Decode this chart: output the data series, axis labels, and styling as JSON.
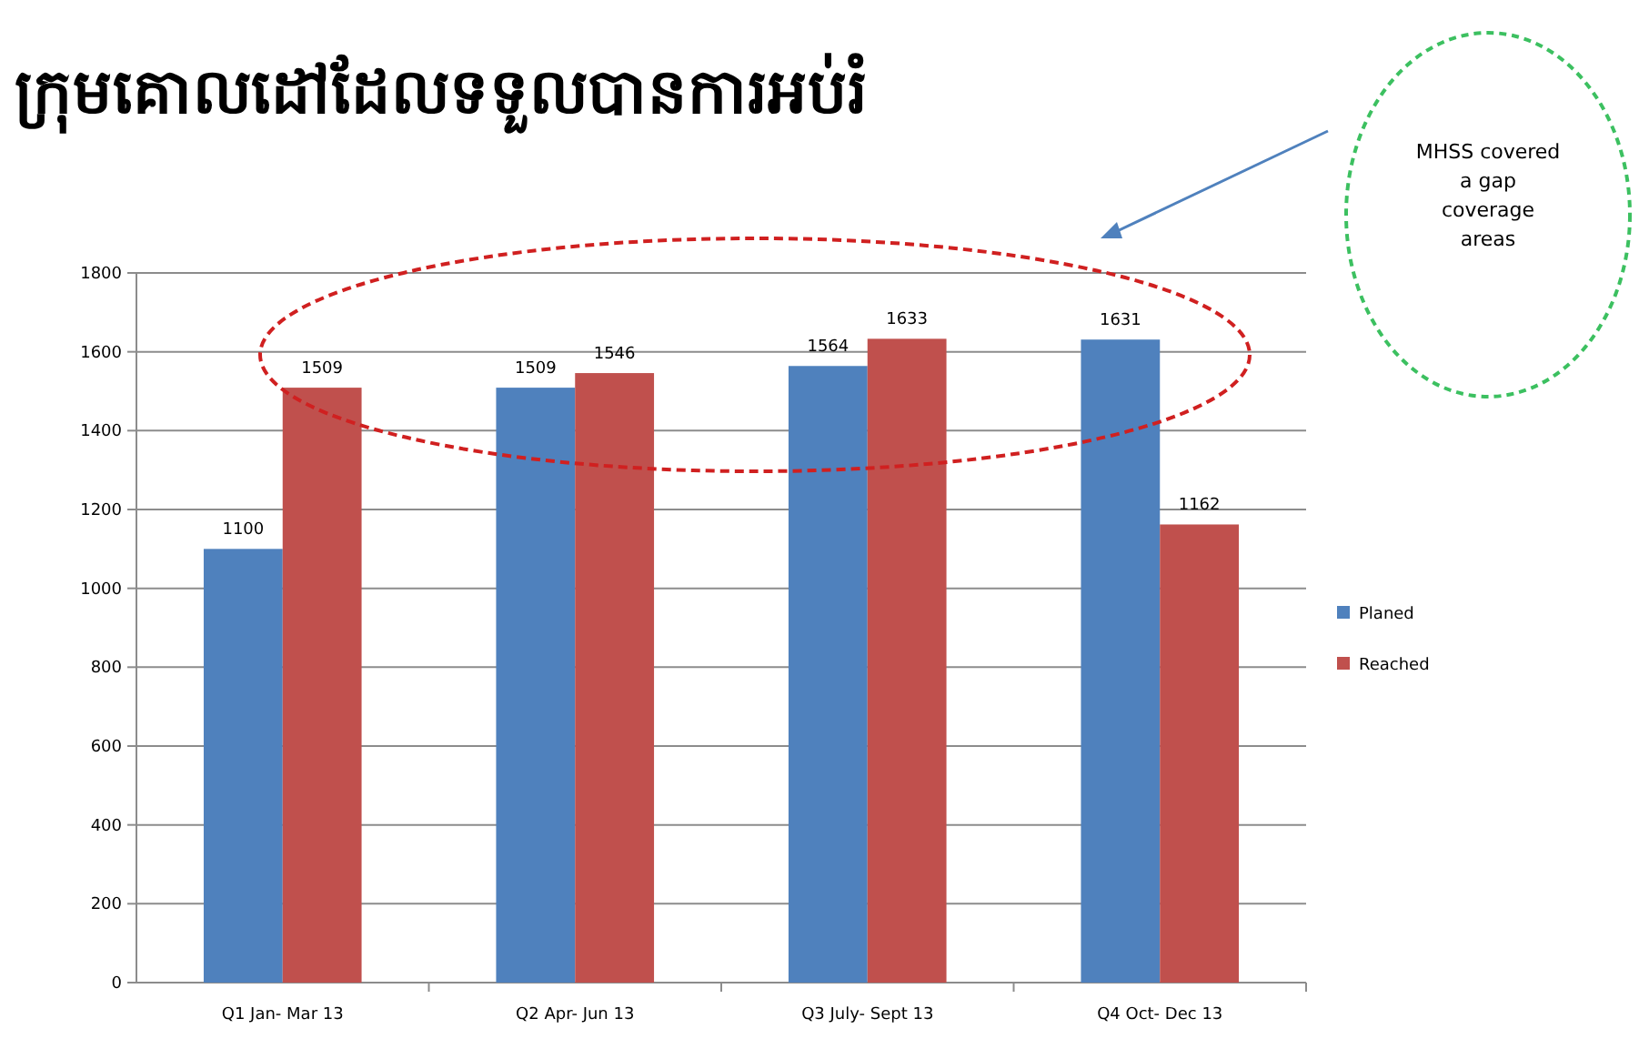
{
  "chart_data": {
    "type": "bar",
    "title": "ក្រុមគោលដៅដែលទទួលបានការអប់រំ",
    "categories": [
      "Q1 Jan- Mar 13",
      "Q2 Apr- Jun 13",
      "Q3 July- Sept 13",
      "Q4 Oct- Dec 13"
    ],
    "series": [
      {
        "name": "Planed",
        "color": "#4f81bd",
        "values": [
          1100,
          1509,
          1564,
          1631
        ]
      },
      {
        "name": "Reached",
        "color": "#c0504d",
        "values": [
          1509,
          1546,
          1633,
          1162
        ]
      }
    ],
    "ylim": [
      0,
      1800
    ],
    "yticks": [
      0,
      200,
      400,
      600,
      800,
      1000,
      1200,
      1400,
      1600,
      1800
    ],
    "grid": "y",
    "legend": "right",
    "data_labels": true,
    "annotations": [
      "MHSS covered  a gap coverage areas"
    ]
  }
}
